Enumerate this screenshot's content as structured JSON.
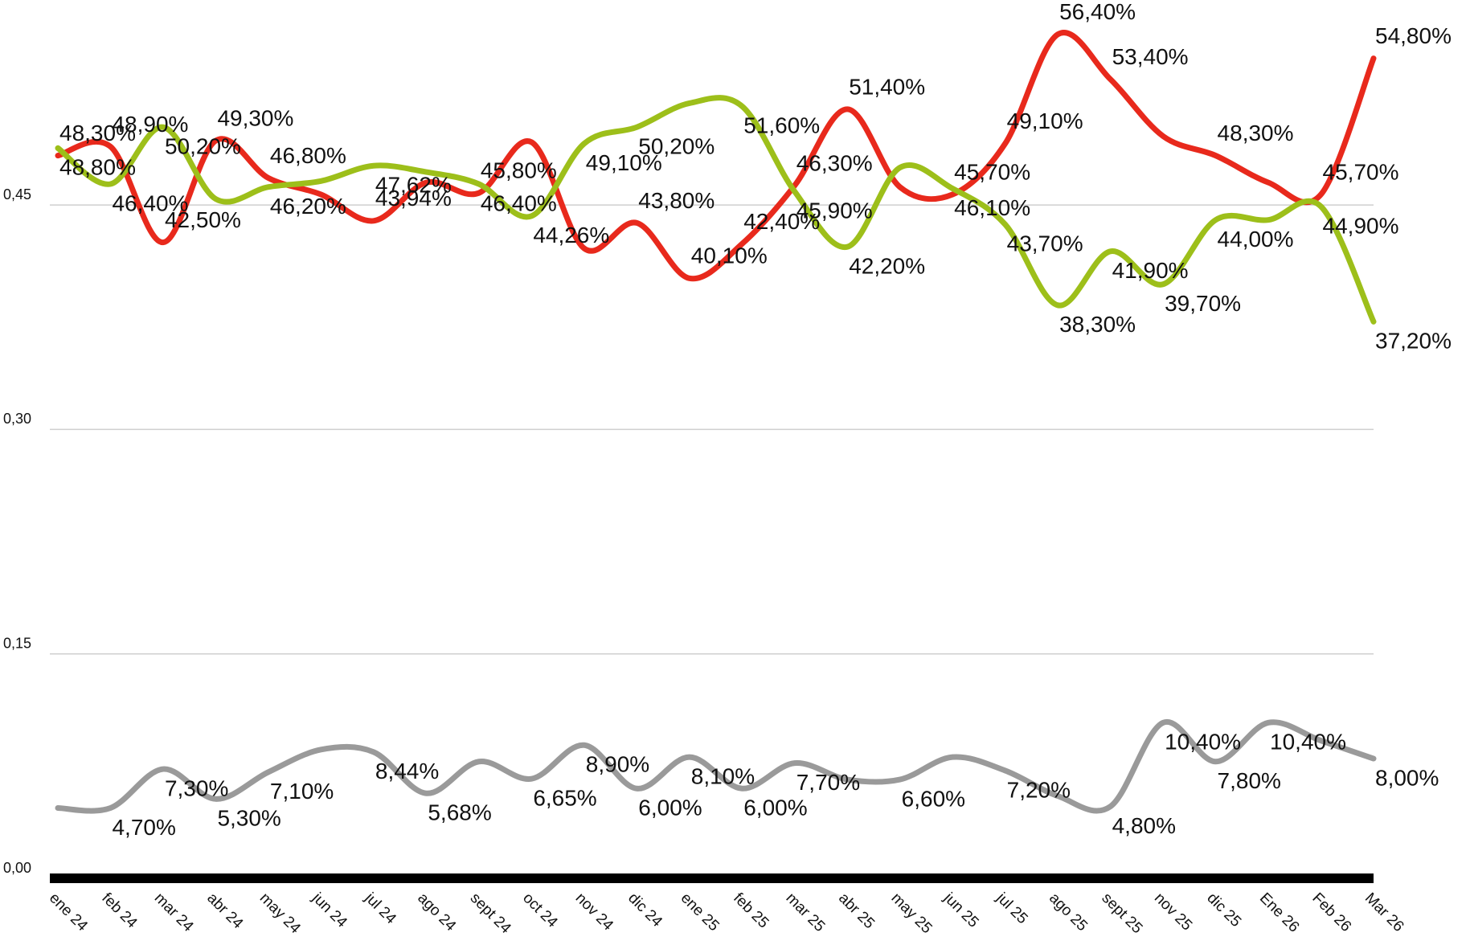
{
  "chart_data": {
    "type": "line",
    "categories": [
      "ene 24",
      "feb 24",
      "mar 24",
      "abr 24",
      "may 24",
      "jun 24",
      "jul 24",
      "ago 24",
      "sept 24",
      "oct 24",
      "nov 24",
      "dic 24",
      "ene 25",
      "feb 25",
      "mar 25",
      "abr 25",
      "may 25",
      "jun 25",
      "jul 25",
      "ago 25",
      "sept 25",
      "nov 25",
      "dic 25",
      "Ene 26",
      "Feb 26",
      "Mar 26"
    ],
    "series": [
      {
        "color": "#e8291c",
        "values": [
          0.483,
          0.489,
          0.425,
          0.493,
          0.468,
          0.457,
          0.4394,
          0.465,
          0.458,
          0.492,
          0.421,
          0.438,
          0.401,
          0.424,
          0.463,
          0.514,
          0.462,
          0.457,
          0.491,
          0.564,
          0.534,
          0.496,
          0.483,
          0.465,
          0.457,
          0.548
        ],
        "value_labels": [
          "48,30%",
          "48,90%",
          "42,50%",
          "49,30%",
          "46,80%",
          null,
          "43,94%",
          null,
          "45,80%",
          null,
          null,
          "43,80%",
          "40,10%",
          "42,40%",
          "46,30%",
          "51,40%",
          null,
          "45,70%",
          "49,10%",
          "56,40%",
          "53,40%",
          null,
          "48,30%",
          null,
          "45,70%",
          "54,80%"
        ]
      },
      {
        "color": "#9dbf1a",
        "values": [
          0.488,
          0.464,
          0.502,
          0.454,
          0.462,
          0.466,
          0.4762,
          0.472,
          0.464,
          0.4426,
          0.491,
          0.502,
          0.518,
          0.516,
          0.459,
          0.422,
          0.475,
          0.461,
          0.437,
          0.383,
          0.419,
          0.397,
          0.44,
          0.44,
          0.449,
          0.372
        ],
        "value_labels": [
          "48,80%",
          "46,40%",
          "50,20%",
          null,
          "46,20%",
          null,
          "47,62%",
          null,
          "46,40%",
          "44,26%",
          "49,10%",
          "50,20%",
          null,
          "51,60%",
          "45,90%",
          "42,20%",
          null,
          "46,10%",
          "43,70%",
          "38,30%",
          "41,90%",
          "39,70%",
          "44,00%",
          null,
          "44,90%",
          "37,20%"
        ]
      },
      {
        "color": "#9a9a9a",
        "values": [
          0.047,
          0.047,
          0.073,
          0.053,
          0.071,
          0.086,
          0.0844,
          0.0568,
          0.078,
          0.0665,
          0.089,
          0.06,
          0.081,
          0.06,
          0.077,
          0.066,
          0.066,
          0.081,
          0.072,
          0.055,
          0.048,
          0.104,
          0.078,
          0.104,
          0.092,
          0.08
        ],
        "value_labels": [
          null,
          "4,70%",
          "7,30%",
          "5,30%",
          "7,10%",
          null,
          "8,44%",
          "5,68%",
          null,
          "6,65%",
          "8,90%",
          "6,00%",
          "8,10%",
          "6,00%",
          "7,70%",
          null,
          "6,60%",
          null,
          "7,20%",
          null,
          "4,80%",
          "10,40%",
          "7,80%",
          "10,40%",
          null,
          "8,00%"
        ]
      }
    ],
    "ylim": [
      0,
      0.58
    ],
    "yticks": [
      {
        "value": 0,
        "label": "0,00"
      },
      {
        "value": 0.15,
        "label": "0,15"
      },
      {
        "value": 0.3,
        "label": "0,30"
      },
      {
        "value": 0.45,
        "label": "0,45"
      }
    ],
    "grid": true
  }
}
